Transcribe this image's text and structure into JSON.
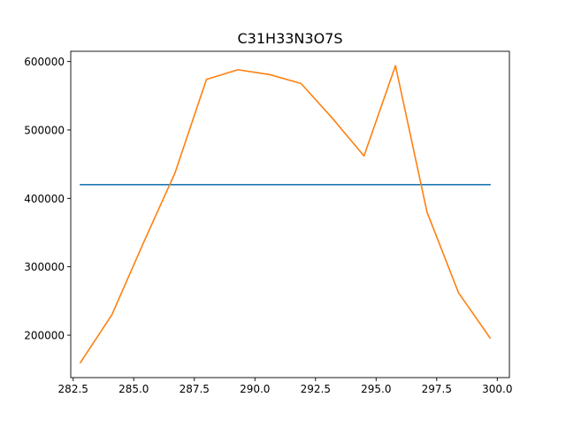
{
  "chart_data": {
    "type": "line",
    "title": "C31H33N3O7S",
    "xlabel": "",
    "ylabel": "",
    "xlim": [
      282.4,
      300.5
    ],
    "ylim": [
      138000,
      615000
    ],
    "x_ticks": [
      282.5,
      285.0,
      287.5,
      290.0,
      292.5,
      295.0,
      297.5,
      300.0
    ],
    "x_tick_labels": [
      "282.5",
      "285.0",
      "287.5",
      "290.0",
      "292.5",
      "295.0",
      "297.5",
      "300.0"
    ],
    "y_ticks": [
      200000,
      300000,
      400000,
      500000,
      600000
    ],
    "y_tick_labels": [
      "200000",
      "300000",
      "400000",
      "500000",
      "600000"
    ],
    "grid": false,
    "legend": "none",
    "series": [
      {
        "color": "#1f77b4",
        "x": [
          282.8,
          299.7
        ],
        "y": [
          420000,
          420000
        ]
      },
      {
        "color": "#ff7f0e",
        "x": [
          282.8,
          284.1,
          285.4,
          286.7,
          288.0,
          289.3,
          290.6,
          291.9,
          293.2,
          294.5,
          295.8,
          297.1,
          298.4,
          299.7
        ],
        "y": [
          160000,
          230000,
          335000,
          437000,
          574000,
          588000,
          581000,
          568000,
          517000,
          462000,
          594000,
          380000,
          262000,
          196000
        ]
      }
    ]
  }
}
